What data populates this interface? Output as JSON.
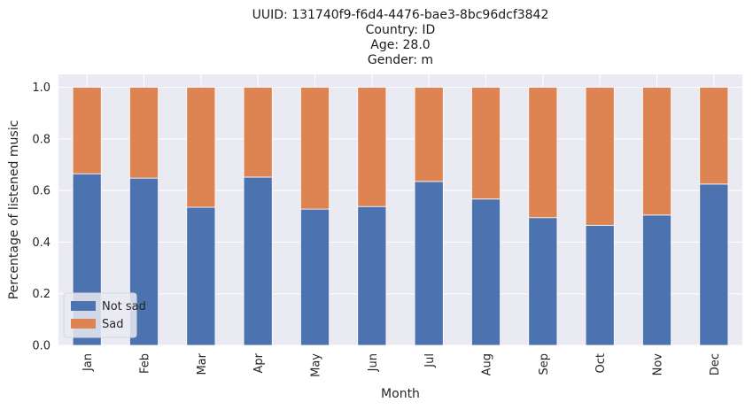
{
  "chart_data": {
    "type": "bar",
    "stacked": true,
    "title_lines": [
      "UUID: 131740f9-f6d4-4476-bae3-8bc96dcf3842",
      "Country: ID",
      "Age: 28.0",
      "Gender: m"
    ],
    "xlabel": "Month",
    "ylabel": "Percentage of listened music",
    "categories": [
      "Jan",
      "Feb",
      "Mar",
      "Apr",
      "May",
      "Jun",
      "Jul",
      "Aug",
      "Sep",
      "Oct",
      "Nov",
      "Dec"
    ],
    "series": [
      {
        "name": "Not sad",
        "color": "#4c72b0",
        "values": [
          0.665,
          0.648,
          0.535,
          0.652,
          0.528,
          0.538,
          0.635,
          0.567,
          0.495,
          0.465,
          0.505,
          0.625
        ]
      },
      {
        "name": "Sad",
        "color": "#dd8452",
        "values": [
          0.335,
          0.352,
          0.465,
          0.348,
          0.472,
          0.462,
          0.365,
          0.433,
          0.505,
          0.535,
          0.495,
          0.375
        ]
      }
    ],
    "ylim": [
      0,
      1.05
    ],
    "yticks": [
      "0.0",
      "0.2",
      "0.4",
      "0.6",
      "0.8",
      "1.0"
    ],
    "grid": true,
    "legend_position": "lower-left",
    "colors": {
      "plot_background": "#eaeaf2",
      "grid": "#ffffff"
    }
  }
}
